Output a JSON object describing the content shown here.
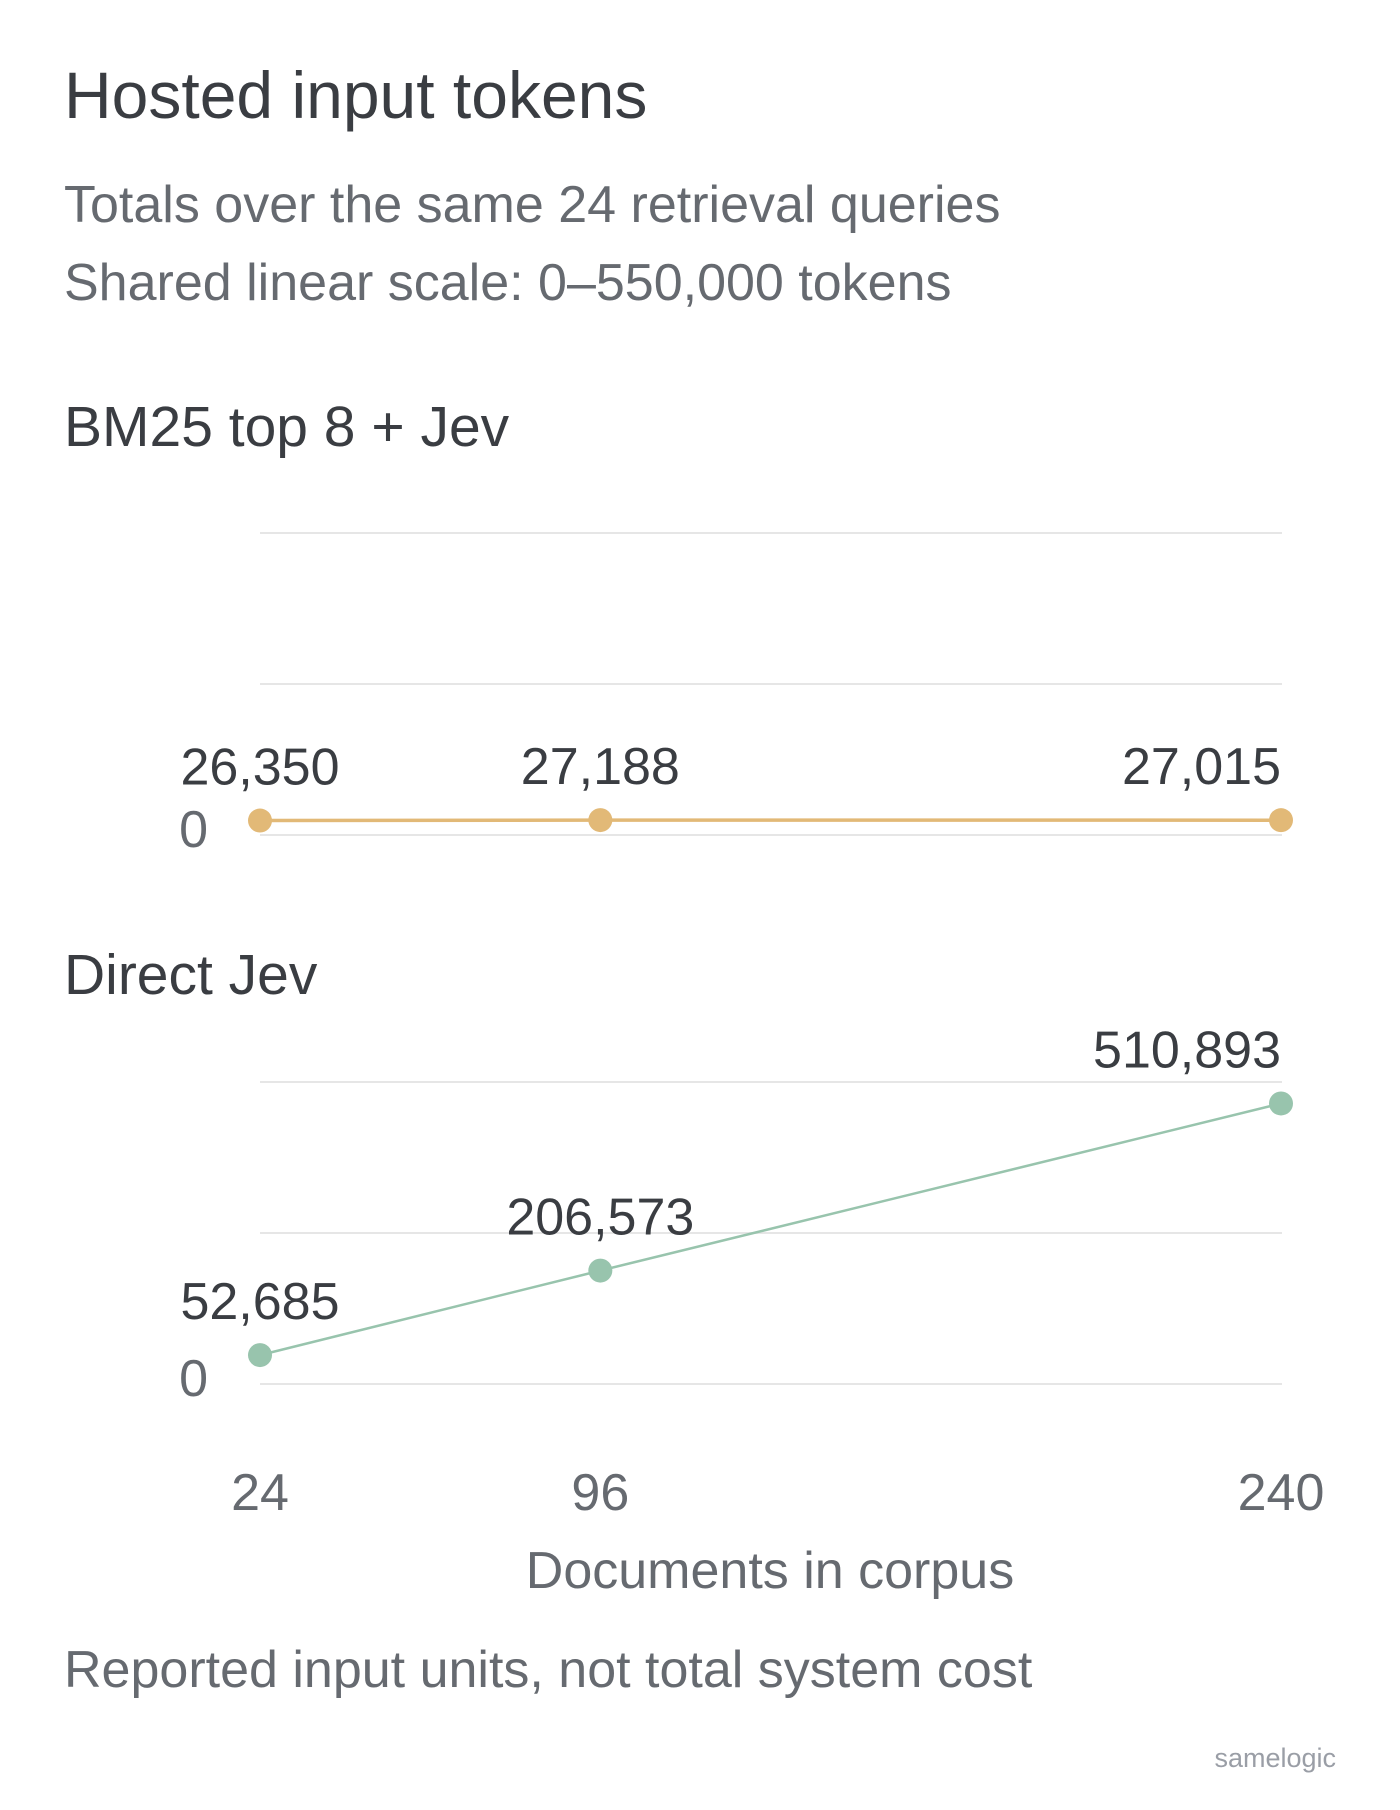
{
  "title": "Hosted input tokens",
  "subtitle_lines": [
    "Totals over the same 24 retrieval queries",
    "Shared linear scale: 0–550,000 tokens"
  ],
  "footnote": "Reported input units, not total system cost",
  "credit": "samelogic",
  "colors": {
    "bm25": "#e2b977",
    "direct": "#98c4ad"
  },
  "chart_data": {
    "type": "line",
    "x": [
      24,
      96,
      240
    ],
    "x_tick_labels": [
      "24",
      "96",
      "240"
    ],
    "xlabel": "Documents in corpus",
    "ylim": [
      0,
      550000
    ],
    "grid": true,
    "series": [
      {
        "name": "BM25 top 8 + Jev",
        "values": [
          26350,
          27188,
          27015
        ],
        "labels": [
          "26,350",
          "27,188",
          "27,015"
        ],
        "zero_label": "0"
      },
      {
        "name": "Direct Jev",
        "values": [
          52685,
          206573,
          510893
        ],
        "labels": [
          "52,685",
          "206,573",
          "510,893"
        ],
        "zero_label": "0"
      }
    ]
  }
}
